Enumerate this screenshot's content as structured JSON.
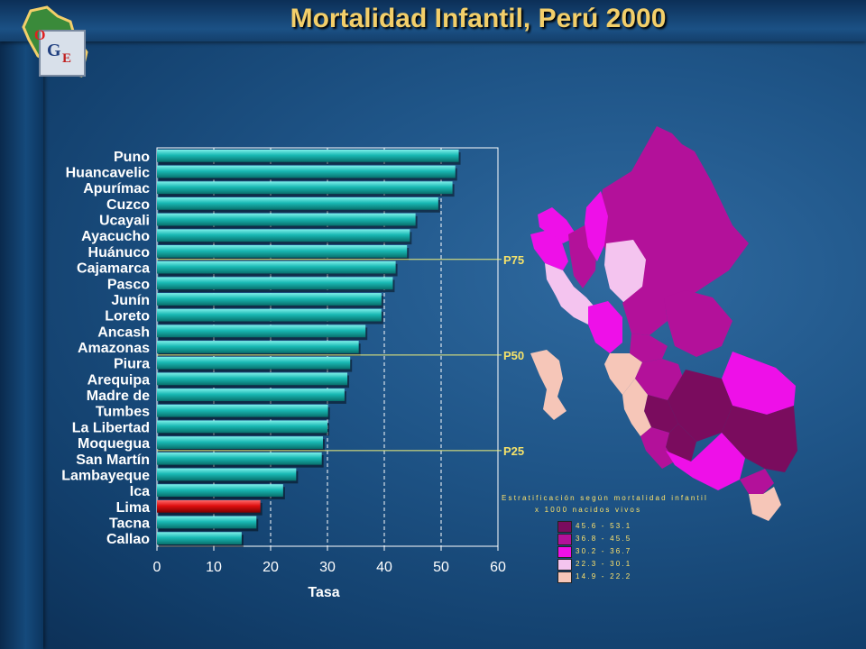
{
  "header": {
    "title": "Mortalidad Infantil, Perú 2000"
  },
  "logo": {
    "letters": [
      "O",
      "G",
      "E"
    ]
  },
  "chart_data": {
    "type": "bar",
    "orientation": "horizontal",
    "title": "Mortalidad Infantil, Perú 2000",
    "xlabel": "Tasa",
    "ylabel": "",
    "xlim": [
      0,
      60
    ],
    "xticks": [
      0,
      10,
      20,
      30,
      40,
      50,
      60
    ],
    "grid": true,
    "categories": [
      "Puno",
      "Huancavelic",
      "Apurímac",
      "Cuzco",
      "Ucayali",
      "Ayacucho",
      "Huánuco",
      "Cajamarca",
      "Pasco",
      "Junín",
      "Loreto",
      "Ancash",
      "Amazonas",
      "Piura",
      "Arequipa",
      "Madre de",
      "Tumbes",
      "La Libertad",
      "Moquegua",
      "San Martín",
      "Lambayeque",
      "Ica",
      "Lima",
      "Tacna",
      "Callao"
    ],
    "values": [
      53.1,
      52.5,
      52.0,
      49.5,
      45.5,
      44.5,
      44.0,
      42.0,
      41.5,
      39.5,
      39.5,
      36.7,
      35.5,
      34.0,
      33.5,
      33.0,
      30.1,
      30.0,
      29.2,
      29.0,
      24.5,
      22.2,
      18.2,
      17.5,
      14.9
    ],
    "highlight": "Lima",
    "bar_color": "#18b7b3",
    "highlight_color": "#e01010",
    "percentiles": [
      {
        "label": "P75",
        "after_index": 6
      },
      {
        "label": "P50",
        "after_index": 12
      },
      {
        "label": "P25",
        "after_index": 18
      }
    ]
  },
  "map_legend": {
    "title": "Estratificación según mortalidad infantil",
    "subtitle": "x 1000 nacidos vivos",
    "items": [
      {
        "label": "45.6 - 53.1",
        "color": "#7a0c5e"
      },
      {
        "label": "36.8 - 45.5",
        "color": "#b3119a"
      },
      {
        "label": "30.2 - 36.7",
        "color": "#ee10e8"
      },
      {
        "label": "22.3 - 30.1",
        "color": "#f4c4ef"
      },
      {
        "label": "14.9 - 22.2",
        "color": "#f6c6b8"
      }
    ]
  }
}
